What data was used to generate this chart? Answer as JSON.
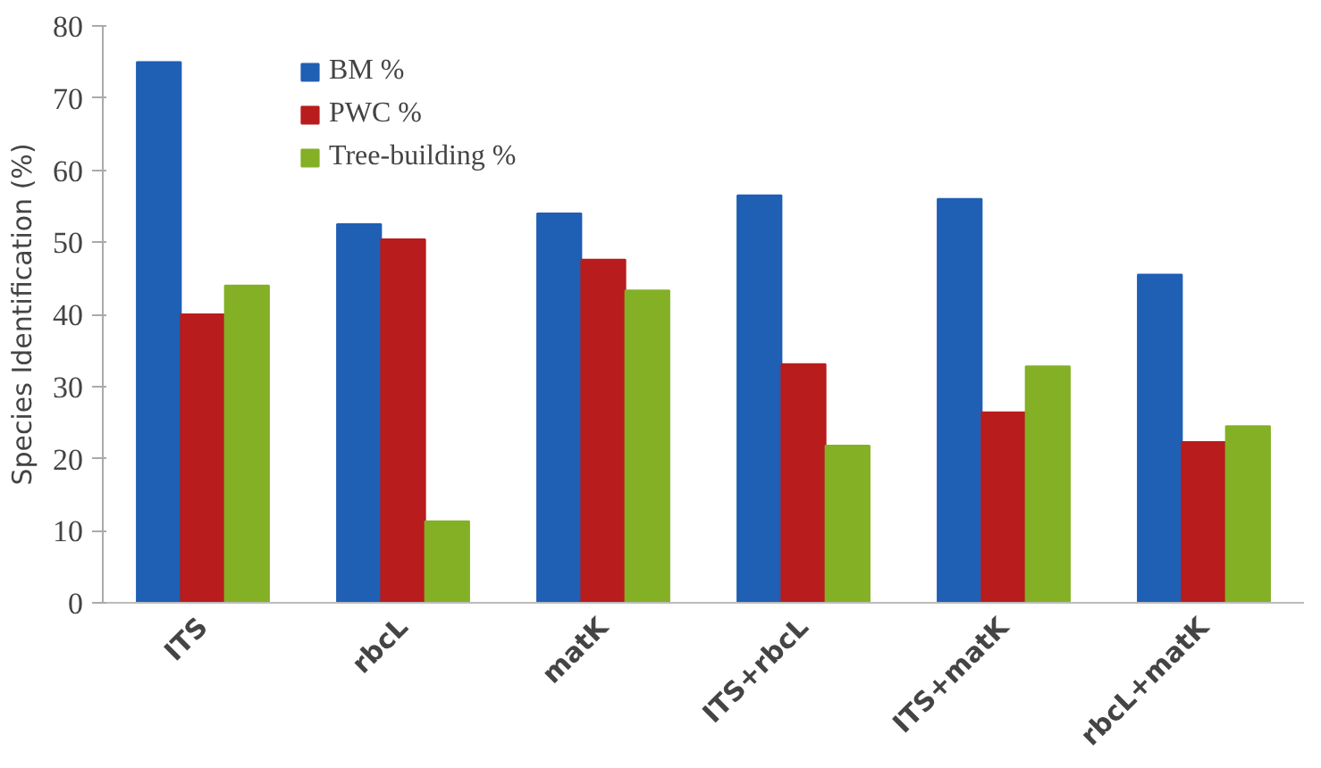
{
  "chart_data": {
    "type": "bar",
    "ylabel": "Species Identification (%)",
    "categories": [
      "ITS",
      "rbcL",
      "matK",
      "ITS+rbcL",
      "ITS+matK",
      "rbcL+matK"
    ],
    "series": [
      {
        "name": "BM %",
        "color": "#1f5fb4",
        "values": [
          75,
          52.5,
          54,
          56.5,
          56,
          45.5
        ]
      },
      {
        "name": "PWC %",
        "color": "#b81c1c",
        "values": [
          40,
          50.4,
          47.6,
          33.1,
          26.4,
          22.3
        ]
      },
      {
        "name": "Tree-building %",
        "color": "#84b026",
        "values": [
          44,
          11.3,
          43.3,
          21.8,
          32.8,
          24.5
        ]
      }
    ],
    "ylim": [
      0,
      80
    ],
    "yticks": [
      0,
      10,
      20,
      30,
      40,
      50,
      60,
      70,
      80
    ],
    "grid": false,
    "legend": "top left"
  }
}
